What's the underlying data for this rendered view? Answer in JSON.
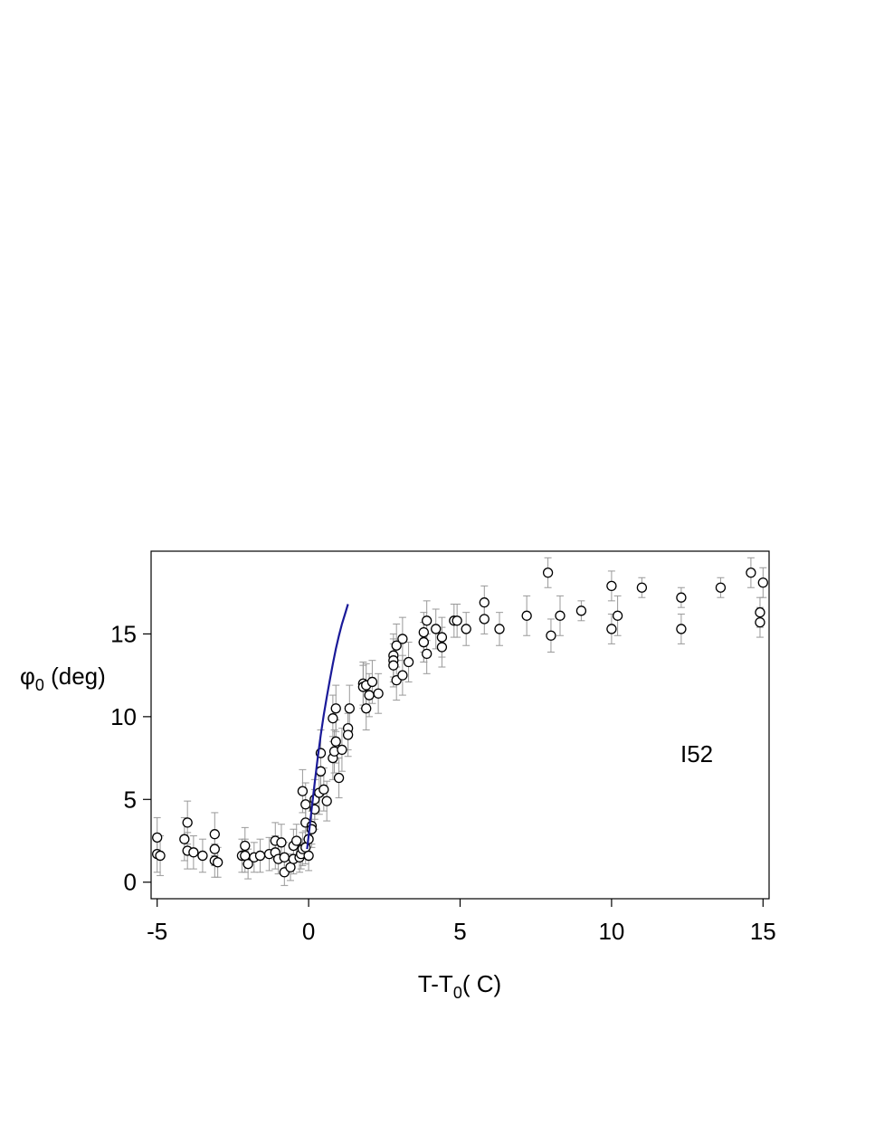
{
  "chart_data": {
    "type": "scatter",
    "title": "",
    "xlabel": "T-T",
    "xlabel_sub": "0",
    "xlabel_suffix": "( C)",
    "ylabel": "φ",
    "ylabel_sub": "0",
    "ylabel_suffix": " (deg)",
    "xlim": [
      -5.2,
      15.2
    ],
    "ylim": [
      -1.0,
      20.0
    ],
    "xticks": [
      -5,
      0,
      5,
      10,
      15
    ],
    "yticks": [
      0,
      5,
      10,
      15
    ],
    "xtick_labels": [
      "-5",
      "0",
      "5",
      "10",
      "15"
    ],
    "ytick_labels": [
      "0",
      "5",
      "10",
      "15"
    ],
    "grid": false,
    "annotation": "I52",
    "colors": {
      "points": "#000000",
      "errorbars": "#999999",
      "fit_line": "#1a1a99"
    },
    "series": [
      {
        "kind": "scatter",
        "points": [
          {
            "x": -5.0,
            "y": 2.7,
            "err": 1.2
          },
          {
            "x": -5.0,
            "y": 1.7,
            "err": 1.1
          },
          {
            "x": -4.9,
            "y": 1.6,
            "err": 1.2
          },
          {
            "x": -4.1,
            "y": 2.6,
            "err": 1.3
          },
          {
            "x": -4.0,
            "y": 3.6,
            "err": 1.3
          },
          {
            "x": -4.0,
            "y": 1.9,
            "err": 1.1
          },
          {
            "x": -3.8,
            "y": 1.8,
            "err": 1.0
          },
          {
            "x": -3.5,
            "y": 1.6,
            "err": 1.0
          },
          {
            "x": -3.1,
            "y": 2.9,
            "err": 1.3
          },
          {
            "x": -3.1,
            "y": 2.0,
            "err": 1.0
          },
          {
            "x": -3.1,
            "y": 1.3,
            "err": 1.0
          },
          {
            "x": -3.0,
            "y": 1.2,
            "err": 0.9
          },
          {
            "x": -2.2,
            "y": 1.6,
            "err": 1.0
          },
          {
            "x": -2.1,
            "y": 2.2,
            "err": 1.1
          },
          {
            "x": -2.1,
            "y": 1.6,
            "err": 1.0
          },
          {
            "x": -2.0,
            "y": 1.1,
            "err": 0.9
          },
          {
            "x": -1.8,
            "y": 1.5,
            "err": 0.9
          },
          {
            "x": -1.6,
            "y": 1.6,
            "err": 1.0
          },
          {
            "x": -1.3,
            "y": 1.7,
            "err": 1.0
          },
          {
            "x": -1.1,
            "y": 1.8,
            "err": 1.0
          },
          {
            "x": -1.1,
            "y": 2.5,
            "err": 1.1
          },
          {
            "x": -1.0,
            "y": 1.4,
            "err": 0.9
          },
          {
            "x": -0.9,
            "y": 2.4,
            "err": 1.1
          },
          {
            "x": -0.8,
            "y": 1.5,
            "err": 0.9
          },
          {
            "x": -0.8,
            "y": 0.6,
            "err": 0.8
          },
          {
            "x": -0.6,
            "y": 0.9,
            "err": 0.8
          },
          {
            "x": -0.5,
            "y": 1.4,
            "err": 0.9
          },
          {
            "x": -0.5,
            "y": 2.2,
            "err": 1.0
          },
          {
            "x": -0.4,
            "y": 2.5,
            "err": 1.0
          },
          {
            "x": -0.3,
            "y": 1.5,
            "err": 0.9
          },
          {
            "x": -0.25,
            "y": 1.7,
            "err": 0.9
          },
          {
            "x": -0.2,
            "y": 2.0,
            "err": 1.0
          },
          {
            "x": -0.2,
            "y": 5.5,
            "err": 1.3
          },
          {
            "x": -0.1,
            "y": 4.7,
            "err": 1.3
          },
          {
            "x": -0.1,
            "y": 3.6,
            "err": 1.2
          },
          {
            "x": -0.1,
            "y": 2.1,
            "err": 1.0
          },
          {
            "x": 0.0,
            "y": 2.6,
            "err": 1.0
          },
          {
            "x": 0.0,
            "y": 1.6,
            "err": 0.9
          },
          {
            "x": 0.1,
            "y": 3.4,
            "err": 1.1
          },
          {
            "x": 0.1,
            "y": 3.2,
            "err": 1.1
          },
          {
            "x": 0.2,
            "y": 4.4,
            "err": 1.2
          },
          {
            "x": 0.2,
            "y": 5.0,
            "err": 1.2
          },
          {
            "x": 0.35,
            "y": 5.4,
            "err": 1.3
          },
          {
            "x": 0.4,
            "y": 6.7,
            "err": 1.3
          },
          {
            "x": 0.4,
            "y": 7.8,
            "err": 1.4
          },
          {
            "x": 0.5,
            "y": 5.6,
            "err": 1.3
          },
          {
            "x": 0.6,
            "y": 4.9,
            "err": 1.2
          },
          {
            "x": 0.8,
            "y": 7.5,
            "err": 1.3
          },
          {
            "x": 0.8,
            "y": 9.9,
            "err": 1.4
          },
          {
            "x": 0.85,
            "y": 7.9,
            "err": 1.3
          },
          {
            "x": 0.9,
            "y": 8.5,
            "err": 1.3
          },
          {
            "x": 0.9,
            "y": 10.5,
            "err": 1.4
          },
          {
            "x": 1.0,
            "y": 6.3,
            "err": 1.2
          },
          {
            "x": 1.1,
            "y": 8.0,
            "err": 1.3
          },
          {
            "x": 1.3,
            "y": 9.3,
            "err": 1.3
          },
          {
            "x": 1.3,
            "y": 8.9,
            "err": 1.3
          },
          {
            "x": 1.35,
            "y": 10.5,
            "err": 1.4
          },
          {
            "x": 1.8,
            "y": 12.0,
            "err": 1.3
          },
          {
            "x": 1.8,
            "y": 11.8,
            "err": 1.3
          },
          {
            "x": 1.9,
            "y": 10.5,
            "err": 1.3
          },
          {
            "x": 1.9,
            "y": 11.9,
            "err": 1.3
          },
          {
            "x": 2.0,
            "y": 11.3,
            "err": 1.3
          },
          {
            "x": 2.1,
            "y": 12.1,
            "err": 1.3
          },
          {
            "x": 2.3,
            "y": 11.4,
            "err": 1.2
          },
          {
            "x": 2.8,
            "y": 13.7,
            "err": 1.3
          },
          {
            "x": 2.8,
            "y": 13.4,
            "err": 1.3
          },
          {
            "x": 2.8,
            "y": 13.1,
            "err": 1.3
          },
          {
            "x": 2.9,
            "y": 14.3,
            "err": 1.3
          },
          {
            "x": 2.9,
            "y": 12.2,
            "err": 1.2
          },
          {
            "x": 3.1,
            "y": 12.5,
            "err": 1.2
          },
          {
            "x": 3.1,
            "y": 14.7,
            "err": 1.3
          },
          {
            "x": 3.3,
            "y": 13.3,
            "err": 1.2
          },
          {
            "x": 3.8,
            "y": 15.1,
            "err": 1.2
          },
          {
            "x": 3.8,
            "y": 14.5,
            "err": 1.2
          },
          {
            "x": 3.8,
            "y": 14.5,
            "err": 1.2
          },
          {
            "x": 3.9,
            "y": 15.8,
            "err": 1.2
          },
          {
            "x": 3.9,
            "y": 13.8,
            "err": 1.2
          },
          {
            "x": 4.2,
            "y": 15.3,
            "err": 1.2
          },
          {
            "x": 4.4,
            "y": 14.8,
            "err": 1.2
          },
          {
            "x": 4.4,
            "y": 14.2,
            "err": 1.2
          },
          {
            "x": 4.8,
            "y": 15.8,
            "err": 1.0
          },
          {
            "x": 4.9,
            "y": 15.8,
            "err": 1.0
          },
          {
            "x": 5.2,
            "y": 15.3,
            "err": 1.0
          },
          {
            "x": 5.8,
            "y": 16.9,
            "err": 1.0
          },
          {
            "x": 5.8,
            "y": 15.9,
            "err": 0.9
          },
          {
            "x": 6.3,
            "y": 15.3,
            "err": 1.0
          },
          {
            "x": 7.2,
            "y": 16.1,
            "err": 1.2
          },
          {
            "x": 7.9,
            "y": 18.7,
            "err": 0.9
          },
          {
            "x": 8.0,
            "y": 14.9,
            "err": 1.0
          },
          {
            "x": 8.3,
            "y": 16.1,
            "err": 1.2
          },
          {
            "x": 9.0,
            "y": 16.4,
            "err": 0.6
          },
          {
            "x": 10.0,
            "y": 17.9,
            "err": 0.9
          },
          {
            "x": 10.0,
            "y": 15.3,
            "err": 0.9
          },
          {
            "x": 10.2,
            "y": 16.1,
            "err": 1.2
          },
          {
            "x": 11.0,
            "y": 17.8,
            "err": 0.6
          },
          {
            "x": 12.3,
            "y": 17.2,
            "err": 0.6
          },
          {
            "x": 12.3,
            "y": 15.3,
            "err": 0.9
          },
          {
            "x": 13.6,
            "y": 17.8,
            "err": 0.6
          },
          {
            "x": 14.6,
            "y": 18.7,
            "err": 0.9
          },
          {
            "x": 14.9,
            "y": 16.3,
            "err": 0.9
          },
          {
            "x": 14.9,
            "y": 15.7,
            "err": 0.9
          },
          {
            "x": 15.0,
            "y": 18.1,
            "err": 0.9
          }
        ]
      },
      {
        "kind": "line",
        "points": [
          {
            "x": -0.05,
            "y": 2.0
          },
          {
            "x": 0.0,
            "y": 2.8
          },
          {
            "x": 0.1,
            "y": 4.4
          },
          {
            "x": 0.2,
            "y": 6.0
          },
          {
            "x": 0.3,
            "y": 7.5
          },
          {
            "x": 0.4,
            "y": 8.9
          },
          {
            "x": 0.5,
            "y": 10.1
          },
          {
            "x": 0.6,
            "y": 11.2
          },
          {
            "x": 0.7,
            "y": 12.2
          },
          {
            "x": 0.8,
            "y": 13.2
          },
          {
            "x": 0.9,
            "y": 14.1
          },
          {
            "x": 1.0,
            "y": 14.9
          },
          {
            "x": 1.1,
            "y": 15.6
          },
          {
            "x": 1.2,
            "y": 16.2
          },
          {
            "x": 1.3,
            "y": 16.8
          }
        ]
      }
    ]
  }
}
